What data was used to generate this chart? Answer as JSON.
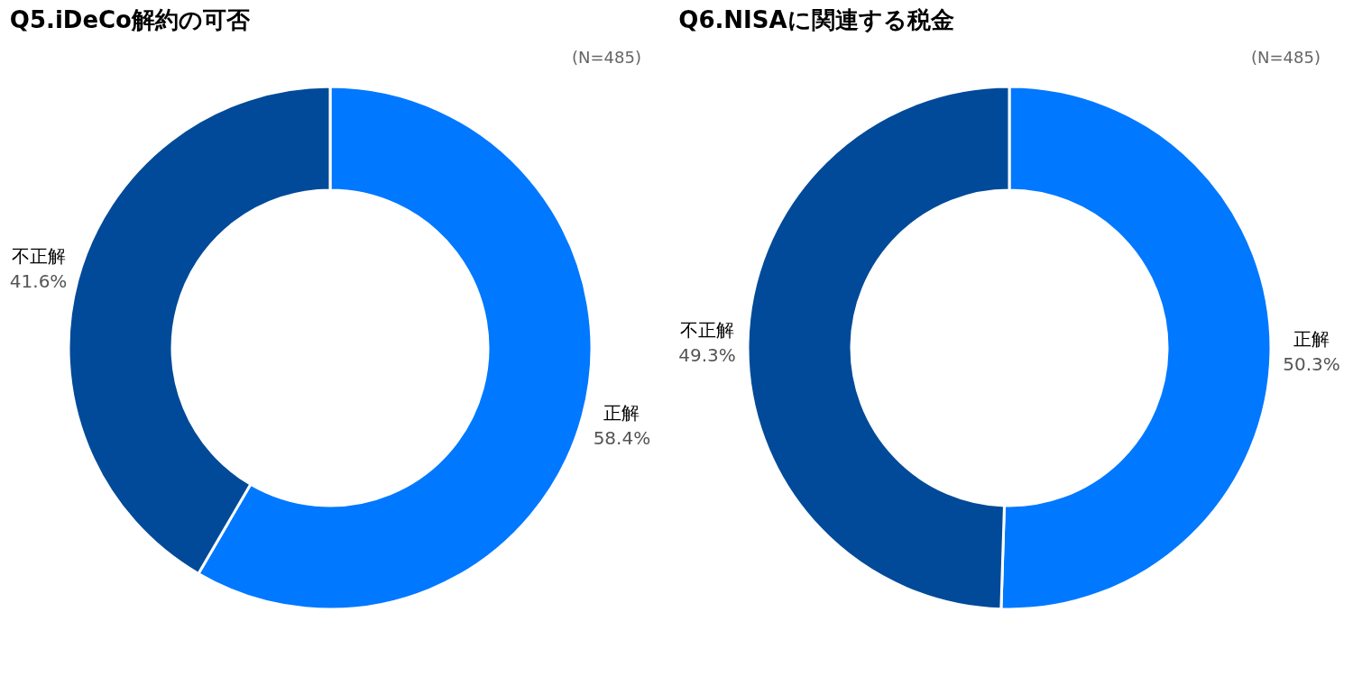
{
  "chart_data": [
    {
      "type": "donut",
      "title": "Q5.iDeCo解約の可否",
      "annotations": [
        "(N=485)"
      ],
      "categories": [
        "正解",
        "不正解"
      ],
      "values": [
        58.4,
        41.6
      ],
      "colors": [
        "#0078ff",
        "#004a99"
      ],
      "value_labels": [
        "58.4%",
        "41.6%"
      ],
      "legend": false
    },
    {
      "type": "donut",
      "title": "Q6.NISAに関連する税金",
      "annotations": [
        "(N=485)"
      ],
      "categories": [
        "正解",
        "不正解"
      ],
      "values": [
        50.3,
        49.3
      ],
      "colors": [
        "#0078ff",
        "#004a99"
      ],
      "value_labels": [
        "50.3%",
        "49.3%"
      ],
      "legend": false
    }
  ]
}
